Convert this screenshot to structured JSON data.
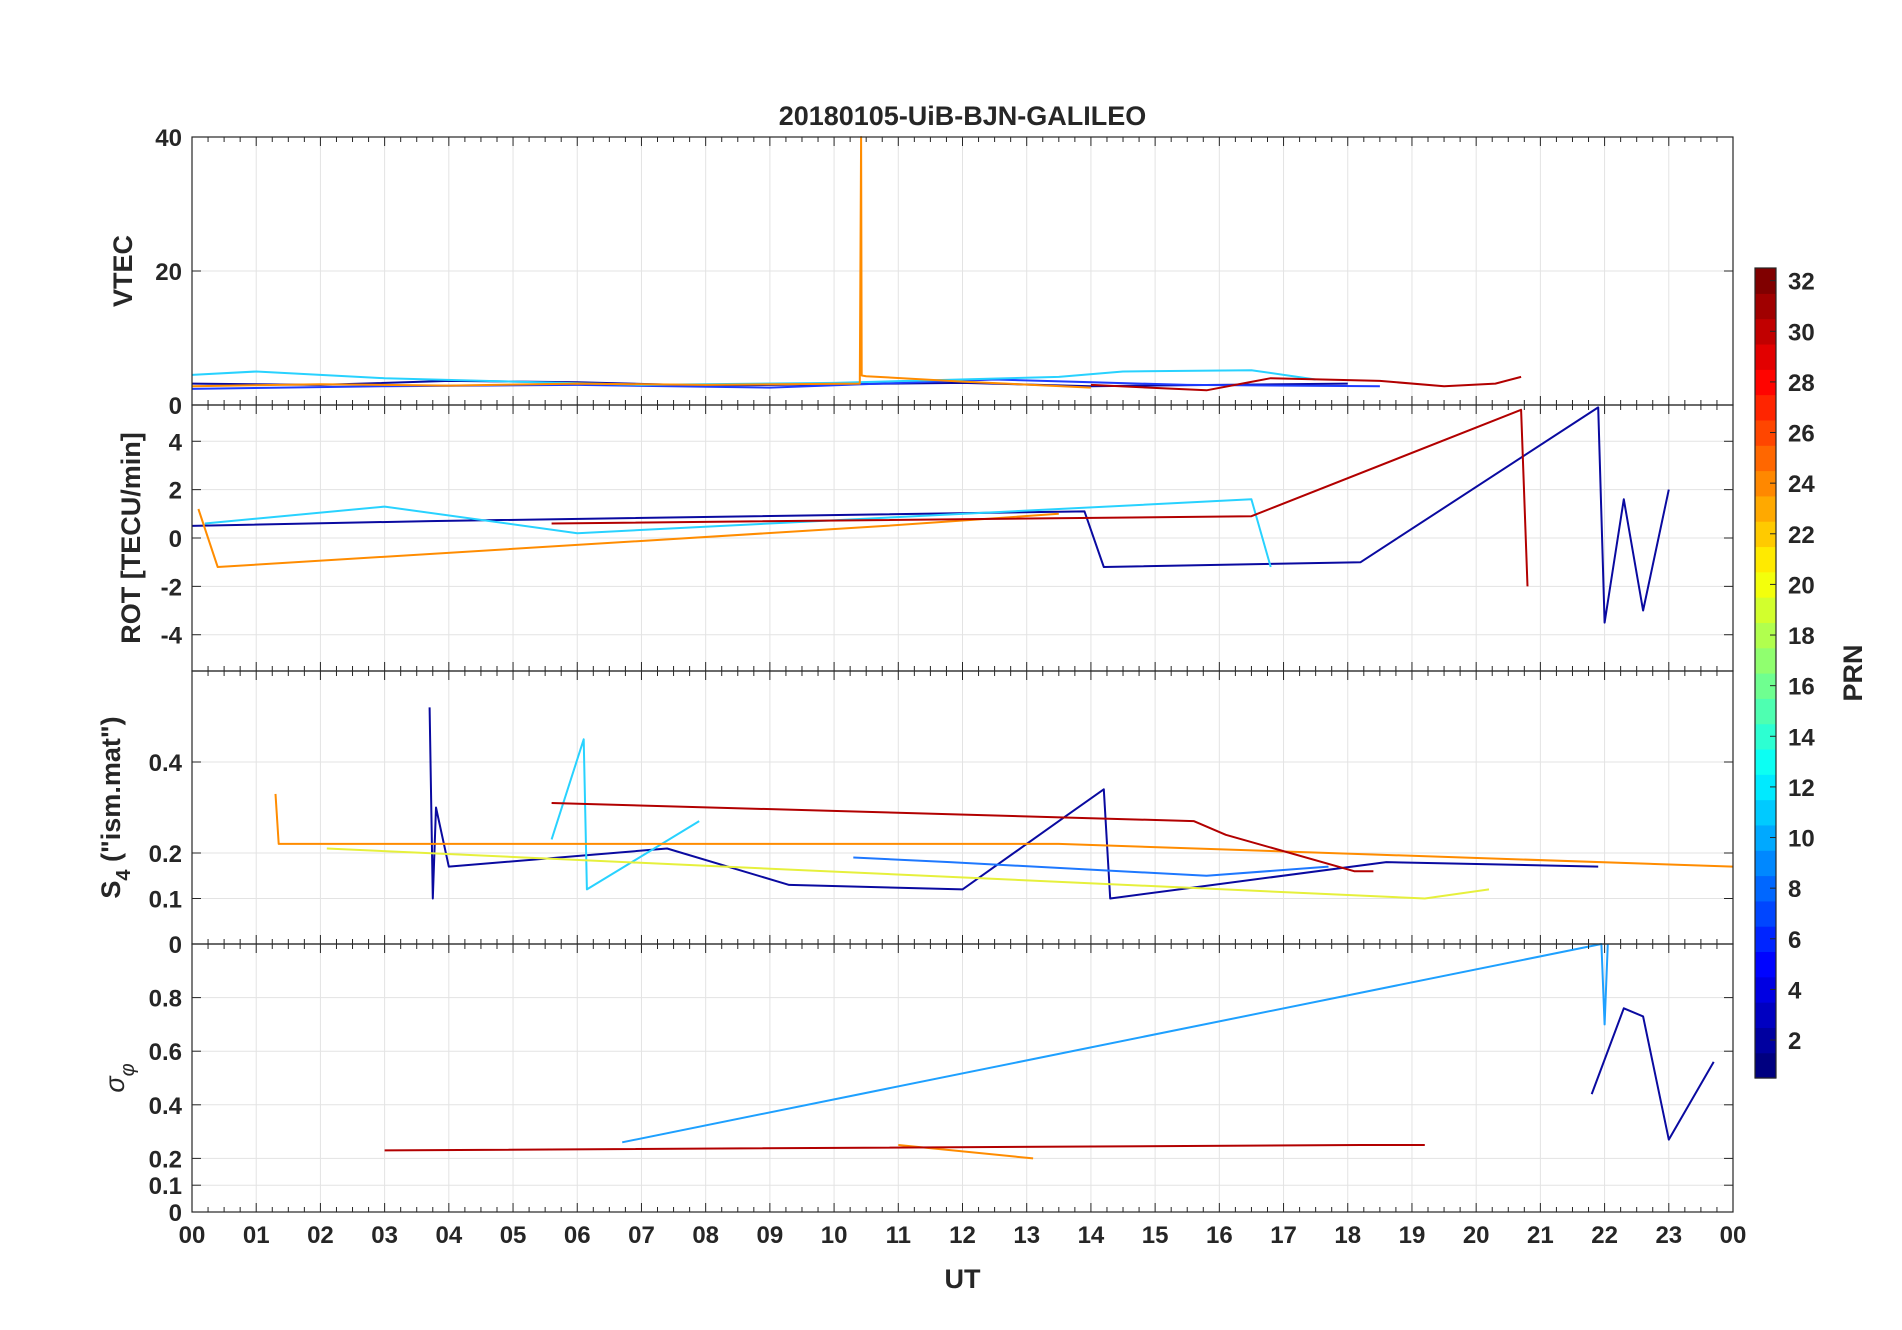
{
  "chart_data": [
    {
      "type": "line",
      "panel": "vtec",
      "title": "20180105-UiB-BJN-GALILEO",
      "ylabel": "VTEC",
      "xlabel": "",
      "xlim": [
        0,
        24
      ],
      "ylim": [
        0,
        40
      ],
      "yticks": [
        0,
        20,
        40
      ],
      "ytick_labels": [
        "0",
        "20",
        "40"
      ],
      "grid": true,
      "series": [
        {
          "name": "PRN 1",
          "color": "#0a0aa0",
          "x": [
            0,
            2,
            4,
            6,
            8,
            10,
            12,
            14,
            16,
            18
          ],
          "y": [
            3.2,
            3.0,
            3.6,
            3.4,
            2.9,
            3.1,
            3.3,
            2.8,
            3.0,
            3.2
          ]
        },
        {
          "name": "PRN 4",
          "color": "#1e3cff",
          "x": [
            0,
            3,
            6,
            9,
            12.5,
            15.5,
            18.5
          ],
          "y": [
            2.4,
            2.8,
            3.0,
            2.6,
            3.8,
            3.0,
            2.8
          ]
        },
        {
          "name": "PRN 12",
          "color": "#28d2ff",
          "x": [
            0,
            1,
            3,
            5,
            7,
            10,
            13.5,
            14.5,
            16.5,
            17.5
          ],
          "y": [
            4.5,
            5.0,
            4.0,
            3.5,
            3.0,
            3.3,
            4.2,
            5.0,
            5.2,
            3.8
          ]
        },
        {
          "name": "PRN 23",
          "color": "#ff8c00",
          "x": [
            0,
            2,
            4,
            6,
            8,
            10.4,
            10.42,
            10.43,
            10.5,
            12,
            14
          ],
          "y": [
            2.8,
            3.1,
            2.9,
            3.2,
            3.0,
            3.2,
            40,
            4.4,
            4.3,
            3.5,
            2.6
          ]
        },
        {
          "name": "PRN 31",
          "color": "#b20000",
          "x": [
            14,
            15.8,
            16.8,
            18.5,
            19.5,
            20.3,
            20.7
          ],
          "y": [
            3.0,
            2.2,
            4.0,
            3.6,
            2.8,
            3.2,
            4.2
          ]
        }
      ]
    },
    {
      "type": "line",
      "panel": "rot",
      "ylabel": "ROT [TECU/min]",
      "xlabel": "",
      "xlim": [
        0,
        24
      ],
      "ylim": [
        -5.5,
        5.5
      ],
      "yticks": [
        -4,
        -2,
        0,
        2,
        4
      ],
      "ytick_labels": [
        "-4",
        "-2",
        "0",
        "2",
        "4"
      ],
      "grid": true,
      "series": [
        {
          "name": "PRN 2",
          "color": "#0a0aa0",
          "x": [
            0,
            3.7,
            13.9,
            14.2,
            18.2,
            21.9,
            22.0,
            22.3,
            22.6,
            23.0
          ],
          "y": [
            0.5,
            0.7,
            1.1,
            -1.2,
            -1.0,
            5.4,
            -3.5,
            1.6,
            -3.0,
            2.0
          ]
        },
        {
          "name": "PRN 12",
          "color": "#28d2ff",
          "x": [
            0.2,
            3.0,
            6.0,
            16.5,
            16.8
          ],
          "y": [
            0.6,
            1.3,
            0.2,
            1.6,
            -1.2
          ]
        },
        {
          "name": "PRN 23",
          "color": "#ff8c00",
          "x": [
            0.1,
            0.4,
            10.8,
            13.5
          ],
          "y": [
            1.2,
            -1.2,
            0.5,
            1.0
          ]
        },
        {
          "name": "PRN 31",
          "color": "#b20000",
          "x": [
            5.6,
            16.5,
            20.7,
            20.8
          ],
          "y": [
            0.6,
            0.9,
            5.3,
            -2.0
          ]
        }
      ]
    },
    {
      "type": "line",
      "panel": "s4",
      "ylabel": "S4 (\"ism.mat\")",
      "ylabel_main": "S",
      "ylabel_sub": "4",
      "ylabel_rest": " (\"ism.mat\")",
      "xlabel": "",
      "xlim": [
        0,
        24
      ],
      "ylim": [
        0,
        0.6
      ],
      "yticks": [
        0,
        0.1,
        0.2,
        0.4
      ],
      "ytick_labels": [
        "0",
        "0.1",
        "0.2",
        "0.4"
      ],
      "grid": true,
      "series": [
        {
          "name": "PRN 2",
          "color": "#0a0aa0",
          "x": [
            3.7,
            3.75,
            3.8,
            4.0,
            7.4,
            9.3,
            12.0,
            13.6,
            14.2,
            14.3,
            18.6,
            21.9
          ],
          "y": [
            0.52,
            0.1,
            0.3,
            0.17,
            0.21,
            0.13,
            0.12,
            0.28,
            0.34,
            0.1,
            0.18,
            0.17
          ]
        },
        {
          "name": "PRN 9",
          "color": "#1e78ff",
          "x": [
            10.3,
            11.8,
            15.8,
            17.7
          ],
          "y": [
            0.19,
            0.18,
            0.15,
            0.17
          ]
        },
        {
          "name": "PRN 12",
          "color": "#28d2ff",
          "x": [
            5.6,
            6.1,
            6.15,
            7.9
          ],
          "y": [
            0.23,
            0.45,
            0.12,
            0.27
          ]
        },
        {
          "name": "PRN 20",
          "color": "#e6f03c",
          "x": [
            2.1,
            19.2,
            20.2
          ],
          "y": [
            0.21,
            0.1,
            0.12
          ]
        },
        {
          "name": "PRN 23",
          "color": "#ff8c00",
          "x": [
            1.3,
            1.35,
            13.5,
            24.0
          ],
          "y": [
            0.33,
            0.22,
            0.22,
            0.17
          ]
        },
        {
          "name": "PRN 31",
          "color": "#b20000",
          "x": [
            5.6,
            15.6,
            16.1,
            18.1,
            18.4
          ],
          "y": [
            0.31,
            0.27,
            0.24,
            0.16,
            0.16
          ]
        }
      ]
    },
    {
      "type": "line",
      "panel": "sigma_phi",
      "ylabel": "σφ",
      "ylabel_main": "σ",
      "ylabel_sub": "φ",
      "xlabel": "UT",
      "xlim": [
        0,
        24
      ],
      "ylim": [
        0,
        1
      ],
      "yticks": [
        0,
        0.1,
        0.2,
        0.4,
        0.6,
        0.8
      ],
      "ytick_labels": [
        "0",
        "0.1",
        "0.2",
        "0.4",
        "0.6",
        "0.8"
      ],
      "xticks": [
        0,
        1,
        2,
        3,
        4,
        5,
        6,
        7,
        8,
        9,
        10,
        11,
        12,
        13,
        14,
        15,
        16,
        17,
        18,
        19,
        20,
        21,
        22,
        23,
        24
      ],
      "xtick_labels": [
        "00",
        "01",
        "02",
        "03",
        "04",
        "05",
        "06",
        "07",
        "08",
        "09",
        "10",
        "11",
        "12",
        "13",
        "14",
        "15",
        "16",
        "17",
        "18",
        "19",
        "20",
        "21",
        "22",
        "23",
        "00"
      ],
      "grid": true,
      "series": [
        {
          "name": "PRN 2",
          "color": "#0a0aa0",
          "x": [
            21.8,
            22.3,
            22.6,
            23.0,
            23.7
          ],
          "y": [
            0.44,
            0.76,
            0.73,
            0.27,
            0.56
          ]
        },
        {
          "name": "PRN 10",
          "color": "#1ea0ff",
          "x": [
            6.7,
            21.95,
            22.0,
            22.05
          ],
          "y": [
            0.26,
            1.0,
            0.7,
            1.0
          ]
        },
        {
          "name": "PRN 23",
          "color": "#ff8c00",
          "x": [
            11.0,
            13.1
          ],
          "y": [
            0.25,
            0.2
          ]
        },
        {
          "name": "PRN 31",
          "color": "#b20000",
          "x": [
            3.0,
            18.2,
            19.2
          ],
          "y": [
            0.23,
            0.25,
            0.25
          ]
        }
      ]
    }
  ],
  "colorbar": {
    "label": "PRN",
    "min": 1,
    "max": 32,
    "ticks": [
      2,
      4,
      6,
      8,
      10,
      12,
      14,
      16,
      18,
      20,
      22,
      24,
      26,
      28,
      30,
      32
    ],
    "tick_labels": [
      "2",
      "4",
      "6",
      "8",
      "10",
      "12",
      "14",
      "16",
      "18",
      "20",
      "22",
      "24",
      "26",
      "28",
      "30",
      "32"
    ],
    "colormap": "jet"
  }
}
